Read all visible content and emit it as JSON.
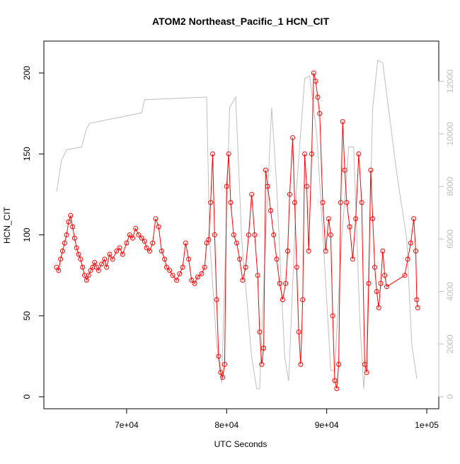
{
  "chart_data": {
    "type": "line",
    "title": "ATOM2 Northeast_Pacific_1 HCN_CIT",
    "x_label": "UTC Seconds",
    "y_label": "HCN_CIT",
    "xlim": [
      61730,
      101200
    ],
    "ylim": [
      -7.4,
      219.7
    ],
    "y2lim": [
      -460,
      13530
    ],
    "xticks": [
      {
        "value": 70000,
        "label": "7e+04"
      },
      {
        "value": 80000,
        "label": "8e+04"
      },
      {
        "value": 90000,
        "label": "9e+04"
      },
      {
        "value": 100000,
        "label": "1e+05"
      }
    ],
    "yticks": [
      0,
      50,
      100,
      150,
      200
    ],
    "y2ticks": [
      0,
      2000,
      4000,
      6000,
      8000,
      10000,
      12000
    ],
    "series": [
      {
        "color": "#ff0000",
        "marker": "circle",
        "x": [
          63000,
          63200,
          63400,
          63600,
          63800,
          64000,
          64200,
          64400,
          64600,
          64800,
          65000,
          65200,
          65400,
          65600,
          65800,
          66000,
          66200,
          66400,
          66600,
          66800,
          67000,
          67200,
          67500,
          67800,
          68000,
          68300,
          68600,
          69000,
          69300,
          69600,
          70000,
          70300,
          70600,
          70900,
          71200,
          71500,
          71800,
          72000,
          72300,
          72600,
          72900,
          73200,
          73500,
          73800,
          74000,
          74300,
          74600,
          75000,
          75300,
          75600,
          75900,
          76200,
          76500,
          76800,
          77100,
          77500,
          77800,
          78000,
          78200,
          78400,
          78600,
          78800,
          79000,
          79200,
          79400,
          79600,
          79800,
          80000,
          80200,
          80400,
          80700,
          81000,
          81300,
          81600,
          81900,
          82200,
          82500,
          82800,
          83100,
          83300,
          83500,
          83700,
          83900,
          84100,
          84400,
          84700,
          85000,
          85300,
          85600,
          85900,
          86100,
          86300,
          86600,
          86800,
          87000,
          87200,
          87400,
          87600,
          87800,
          88000,
          88200,
          88500,
          88700,
          88900,
          89100,
          89300,
          89600,
          89900,
          90200,
          90400,
          90600,
          90800,
          91000,
          91200,
          91400,
          91600,
          91800,
          92000,
          92300,
          92600,
          92900,
          93200,
          93500,
          93800,
          94000,
          94200,
          94400,
          94600,
          94800,
          95000,
          95200,
          95400,
          95600,
          95800,
          96000,
          97800,
          98100,
          98400,
          98700,
          98900,
          99000,
          99100
        ],
        "values": [
          80,
          78,
          85,
          90,
          95,
          100,
          108,
          112,
          105,
          98,
          92,
          88,
          85,
          80,
          75,
          72,
          75,
          78,
          80,
          83,
          80,
          78,
          82,
          85,
          80,
          88,
          85,
          90,
          92,
          88,
          95,
          100,
          98,
          104,
          100,
          98,
          96,
          92,
          90,
          95,
          110,
          105,
          90,
          85,
          80,
          78,
          75,
          72,
          76,
          80,
          95,
          85,
          72,
          70,
          74,
          76,
          80,
          95,
          97,
          120,
          150,
          100,
          60,
          25,
          15,
          12,
          20,
          130,
          150,
          120,
          100,
          95,
          85,
          72,
          80,
          100,
          125,
          100,
          75,
          40,
          20,
          30,
          140,
          130,
          115,
          100,
          85,
          70,
          60,
          70,
          90,
          125,
          160,
          120,
          80,
          40,
          20,
          60,
          150,
          130,
          90,
          150,
          200,
          195,
          185,
          175,
          120,
          90,
          110,
          100,
          50,
          10,
          5,
          20,
          120,
          170,
          140,
          120,
          105,
          85,
          110,
          150,
          120,
          20,
          15,
          70,
          140,
          110,
          80,
          65,
          55,
          70,
          90,
          75,
          68,
          75,
          85,
          95,
          110,
          90,
          60,
          55
        ]
      },
      {
        "color": "#bebebe",
        "axis": "y2",
        "x": [
          63000,
          63500,
          64000,
          65500,
          66000,
          66300,
          71500,
          71800,
          78000,
          78300,
          79000,
          79500,
          80300,
          80900,
          81500,
          82500,
          83000,
          83300,
          84000,
          84500,
          85000,
          85800,
          86200,
          87000,
          87800,
          88300,
          89000,
          89800,
          90400,
          90800,
          91500,
          92200,
          92700,
          93300,
          93700,
          94000,
          94600,
          95100,
          95600,
          97000,
          98000,
          98500,
          99000
        ],
        "values": [
          7800,
          9000,
          9400,
          9500,
          10200,
          10400,
          10800,
          11300,
          11400,
          6000,
          2000,
          500,
          11000,
          11400,
          6000,
          1500,
          300,
          300,
          7000,
          11000,
          8000,
          1500,
          600,
          8000,
          12100,
          12200,
          10000,
          5000,
          1000,
          1000,
          6000,
          9500,
          9500,
          3000,
          300,
          2000,
          11000,
          12800,
          12700,
          8500,
          6000,
          2000,
          700
        ]
      }
    ]
  }
}
